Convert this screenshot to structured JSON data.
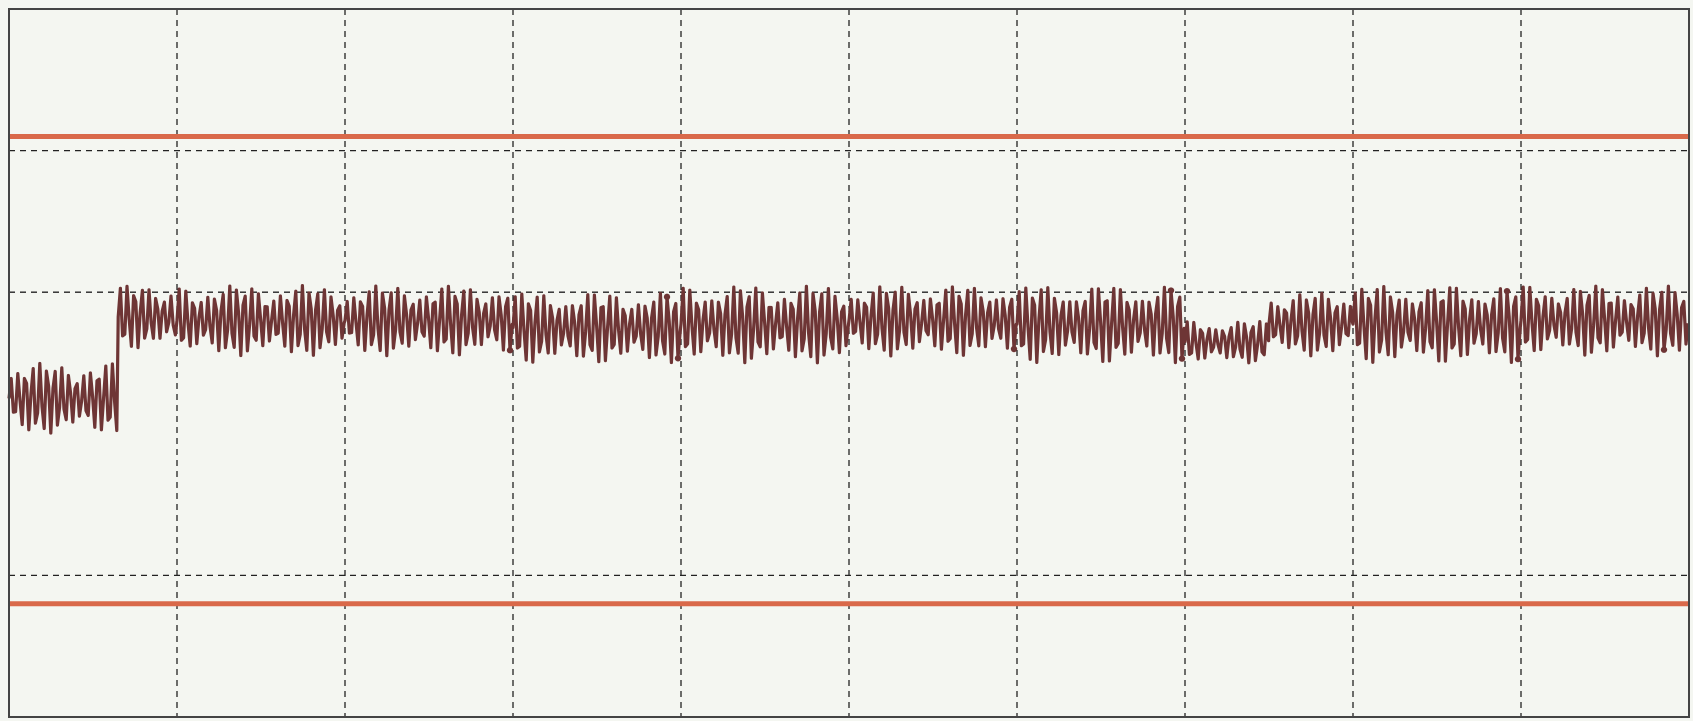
{
  "chart_data": {
    "type": "line",
    "title": "",
    "xlabel": "",
    "ylabel": "",
    "grid": true,
    "legend": "none",
    "xlim": [
      0,
      10
    ],
    "ylim": [
      -4,
      1
    ],
    "x_gridlines": [
      1,
      2,
      3,
      4,
      5,
      6,
      7,
      8,
      9
    ],
    "y_gridlines": [
      -3,
      -1,
      0
    ],
    "reference_lines": [
      {
        "y": 0.1,
        "color": "#d9694a"
      },
      {
        "y": -3.2,
        "color": "#d9694a"
      }
    ],
    "series": [
      {
        "color": "#6e3535",
        "segments": [
          {
            "x_start": 0.0,
            "x_end": 0.65,
            "peak_max": -1.5,
            "trough_min": -2.0
          },
          {
            "x_start": 0.65,
            "x_end": 1.0,
            "peak_max": -0.95,
            "trough_min": -1.4
          },
          {
            "x_start": 1.0,
            "x_end": 2.0,
            "peak_max": -0.95,
            "trough_min": -1.45
          },
          {
            "x_start": 2.0,
            "x_end": 3.0,
            "peak_max": -0.95,
            "trough_min": -1.45
          },
          {
            "x_start": 3.0,
            "x_end": 4.0,
            "peak_max": -1.0,
            "trough_min": -1.5
          },
          {
            "x_start": 4.0,
            "x_end": 5.0,
            "peak_max": -0.95,
            "trough_min": -1.5
          },
          {
            "x_start": 5.0,
            "x_end": 6.0,
            "peak_max": -0.95,
            "trough_min": -1.45
          },
          {
            "x_start": 6.0,
            "x_end": 7.0,
            "peak_max": -0.95,
            "trough_min": -1.5
          },
          {
            "x_start": 7.0,
            "x_end": 7.5,
            "peak_max": -1.2,
            "trough_min": -1.5
          },
          {
            "x_start": 7.5,
            "x_end": 8.0,
            "peak_max": -1.0,
            "trough_min": -1.45
          },
          {
            "x_start": 8.0,
            "x_end": 9.0,
            "peak_max": -0.95,
            "trough_min": -1.5
          },
          {
            "x_start": 9.0,
            "x_end": 10.0,
            "peak_max": -0.95,
            "trough_min": -1.45
          }
        ]
      }
    ]
  }
}
